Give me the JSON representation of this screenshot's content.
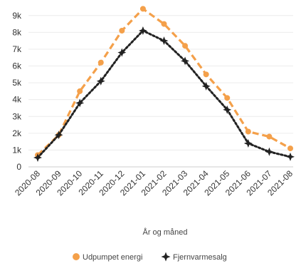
{
  "chart_data": {
    "type": "line",
    "title": "",
    "xlabel": "År og måned",
    "ylabel": "",
    "x": [
      "2020-08",
      "2020-09",
      "2020-10",
      "2020-11",
      "2020-12",
      "2021-01",
      "2021-02",
      "2021-03",
      "2021-04",
      "2021-05",
      "2021-06",
      "2021-07",
      "2021-08"
    ],
    "ylim": [
      0,
      9500
    ],
    "yticks": [
      0,
      1000,
      2000,
      3000,
      4000,
      5000,
      6000,
      7000,
      8000,
      9000
    ],
    "ytick_labels": [
      "0",
      "1k",
      "2k",
      "3k",
      "4k",
      "5k",
      "6k",
      "7k",
      "8k",
      "9k"
    ],
    "grid": "horizontal",
    "legend_position": "bottom",
    "series": [
      {
        "name": "Udpumpet energi",
        "color": "#f4a04a",
        "style": "dashed",
        "marker": "circle",
        "values": [
          700,
          1900,
          4500,
          6200,
          8100,
          9400,
          8500,
          7200,
          5500,
          4100,
          2100,
          1800,
          1100
        ]
      },
      {
        "name": "Fjernvarmesalg",
        "color": "#222222",
        "style": "dotted",
        "marker": "star",
        "values": [
          550,
          1900,
          3800,
          5100,
          6800,
          8100,
          7500,
          6300,
          4800,
          3400,
          1400,
          900,
          600
        ]
      }
    ]
  }
}
